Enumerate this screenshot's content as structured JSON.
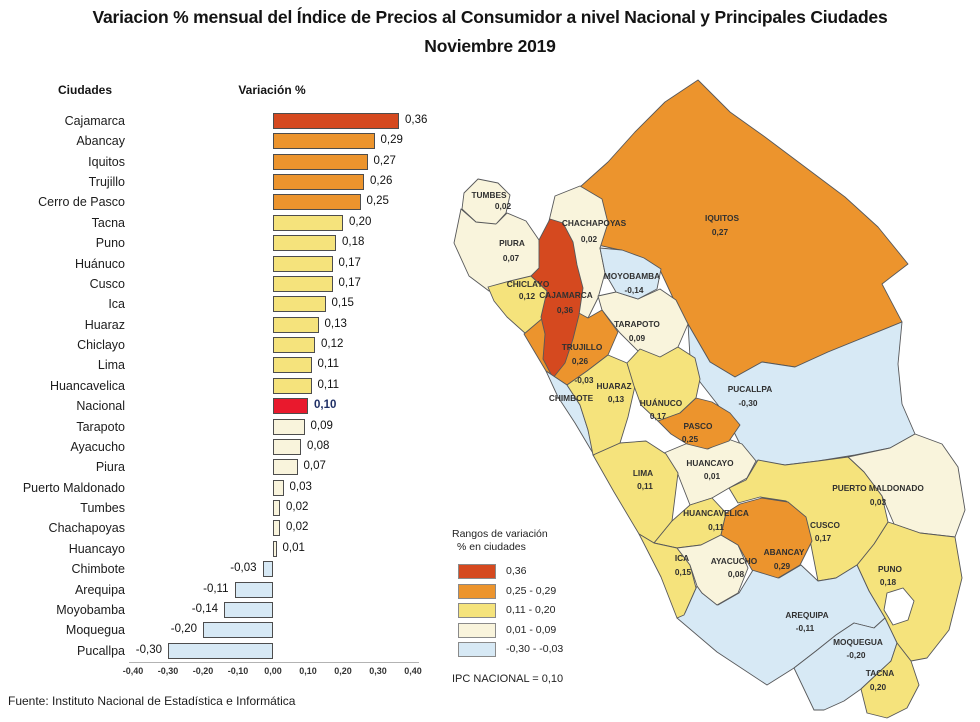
{
  "chart_data": {
    "type": "bar",
    "orientation": "horizontal",
    "title": "Variacion % mensual del Índice de Precios al Consumidor a nivel Nacional y Principales Ciudades",
    "subtitle": "Noviembre 2019",
    "categories_header": "Ciudades",
    "values_header": "Variación %",
    "categories": [
      "Cajamarca",
      "Abancay",
      "Iquitos",
      "Trujillo",
      "Cerro de Pasco",
      "Tacna",
      "Puno",
      "Huánuco",
      "Cusco",
      "Ica",
      "Huaraz",
      "Chiclayo",
      "Lima",
      "Huancavelica",
      "Nacional",
      "Tarapoto",
      "Ayacucho",
      "Piura",
      "Puerto Maldonado",
      "Tumbes",
      "Chachapoyas",
      "Huancayo",
      "Chimbote",
      "Arequipa",
      "Moyobamba",
      "Moquegua",
      "Pucallpa"
    ],
    "values": [
      0.36,
      0.29,
      0.27,
      0.26,
      0.25,
      0.2,
      0.18,
      0.17,
      0.17,
      0.15,
      0.13,
      0.12,
      0.11,
      0.11,
      0.1,
      0.09,
      0.08,
      0.07,
      0.03,
      0.02,
      0.02,
      0.01,
      -0.03,
      -0.11,
      -0.14,
      -0.2,
      -0.3
    ],
    "value_labels": [
      "0,36",
      "0,29",
      "0,27",
      "0,26",
      "0,25",
      "0,20",
      "0,18",
      "0,17",
      "0,17",
      "0,15",
      "0,13",
      "0,12",
      "0,11",
      "0,11",
      "0,10",
      "0,09",
      "0,08",
      "0,07",
      "0,03",
      "0,02",
      "0,02",
      "0,01",
      "-0,03",
      "-0,11",
      "-0,14",
      "-0,20",
      "-0,30"
    ],
    "highlight_category": "Nacional",
    "x_ticks": [
      "-0,40",
      "-0,30",
      "-0,20",
      "-0,10",
      "0,00",
      "0,10",
      "0,20",
      "0,30",
      "0,40"
    ],
    "xlim": [
      -0.4,
      0.4
    ],
    "grid": false
  },
  "palette": {
    "band1": "#D5491F",
    "band2": "#EC942D",
    "band3": "#F5E37C",
    "band4": "#F9F4DC",
    "band5": "#D7E9F5",
    "national": "#E9192D"
  },
  "map": {
    "regions": [
      {
        "id": "iquitos",
        "name": "IQUITOS",
        "value": 0.27,
        "display": "0,27"
      },
      {
        "id": "pucallpa",
        "name": "PUCALLPA",
        "value": -0.3,
        "display": "-0,30"
      },
      {
        "id": "puerto_maldonado",
        "name": "PUERTO MALDONADO",
        "value": 0.03,
        "display": "0,03"
      },
      {
        "id": "puno",
        "name": "PUNO",
        "value": 0.18,
        "display": "0,18"
      },
      {
        "id": "cusco",
        "name": "CUSCO",
        "value": 0.17,
        "display": "0,17"
      },
      {
        "id": "arequipa",
        "name": "AREQUIPA",
        "value": -0.11,
        "display": "-0,11"
      },
      {
        "id": "huancayo",
        "name": "HUANCAYO",
        "value": 0.01,
        "display": "0,01"
      },
      {
        "id": "lima",
        "name": "LIMA",
        "value": 0.11,
        "display": "0,11"
      },
      {
        "id": "chachapoyas",
        "name": "CHACHAPOYAS",
        "value": 0.02,
        "display": "0,02"
      },
      {
        "id": "tarapoto",
        "name": "TARAPOTO",
        "value": 0.09,
        "display": "0,09"
      },
      {
        "id": "moyobamba",
        "name": "MOYOBAMBA",
        "value": -0.14,
        "display": "-0,14"
      },
      {
        "id": "piura",
        "name": "PIURA",
        "value": 0.07,
        "display": "0,07"
      },
      {
        "id": "tumbes",
        "name": "TUMBES",
        "value": 0.02,
        "display": "0,02"
      },
      {
        "id": "chiclayo",
        "name": "CHICLAYO",
        "value": 0.12,
        "display": "0,12"
      },
      {
        "id": "trujillo",
        "name": "TRUJILLO",
        "value": 0.26,
        "display": "0,26"
      },
      {
        "id": "cajamarca",
        "name": "CAJAMARCA",
        "value": 0.36,
        "display": "0,36"
      },
      {
        "id": "chimbote",
        "name": "CHIMBOTE",
        "value": -0.03,
        "display": "-0,03"
      },
      {
        "id": "huaraz",
        "name": "HUARAZ",
        "value": 0.13,
        "display": "0,13"
      },
      {
        "id": "huanuco",
        "name": "HUÁNUCO",
        "value": 0.17,
        "display": "0,17"
      },
      {
        "id": "pasco",
        "name": "PASCO",
        "value": 0.25,
        "display": "0,25"
      },
      {
        "id": "huancavelica",
        "name": "HUANCAVELICA",
        "value": 0.11,
        "display": "0,11"
      },
      {
        "id": "ica",
        "name": "ICA",
        "value": 0.15,
        "display": "0,15"
      },
      {
        "id": "ayacucho",
        "name": "AYACUCHO",
        "value": 0.08,
        "display": "0,08"
      },
      {
        "id": "abancay",
        "name": "ABANCAY",
        "value": 0.29,
        "display": "0,29"
      },
      {
        "id": "moquegua",
        "name": "MOQUEGUA",
        "value": -0.2,
        "display": "-0,20"
      },
      {
        "id": "tacna",
        "name": "TACNA",
        "value": 0.2,
        "display": "0,20"
      }
    ],
    "legend": {
      "title_line1": "Rangos de variación",
      "title_line2": "% en ciudades",
      "items": [
        {
          "band": "band1",
          "label": "0,36"
        },
        {
          "band": "band2",
          "label": "0,25 - 0,29"
        },
        {
          "band": "band3",
          "label": "0,11 - 0,20"
        },
        {
          "band": "band4",
          "label": "0,01 - 0,09"
        },
        {
          "band": "band5",
          "label": "-0,30 - -0,03"
        }
      ]
    },
    "note": "IPC NACIONAL =  0,10"
  },
  "source": "Fuente: Instituto Nacional de Estadística e Informática"
}
